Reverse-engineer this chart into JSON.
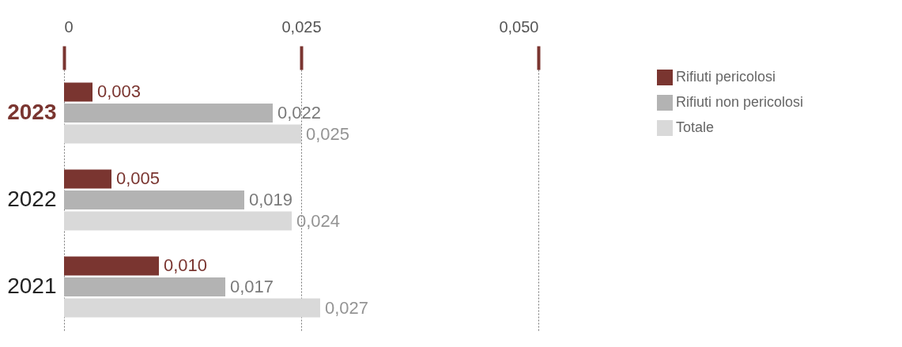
{
  "chart_data": {
    "type": "bar",
    "orientation": "horizontal",
    "categories": [
      "2023",
      "2022",
      "2021"
    ],
    "series": [
      {
        "name": "Rifiuti pericolosi",
        "color": "#7a3530",
        "values": [
          0.003,
          0.005,
          0.01
        ],
        "value_labels": [
          "0,003",
          "0,005",
          "0,010"
        ]
      },
      {
        "name": "Rifiuti non pericolosi",
        "color": "#b3b3b3",
        "values": [
          0.022,
          0.019,
          0.017
        ],
        "value_labels": [
          "0,022",
          "0,019",
          "0,017"
        ]
      },
      {
        "name": "Totale",
        "color": "#d9d9d9",
        "values": [
          0.025,
          0.024,
          0.027
        ],
        "value_labels": [
          "0,025",
          "0,024",
          "0,027"
        ]
      }
    ],
    "xlim": [
      0,
      0.05
    ],
    "xticks": [
      0,
      {
        "value": 0.025,
        "label": "0,025"
      },
      {
        "value": 0.05,
        "label": "0,050"
      }
    ],
    "grid": "x",
    "legend": "right"
  }
}
